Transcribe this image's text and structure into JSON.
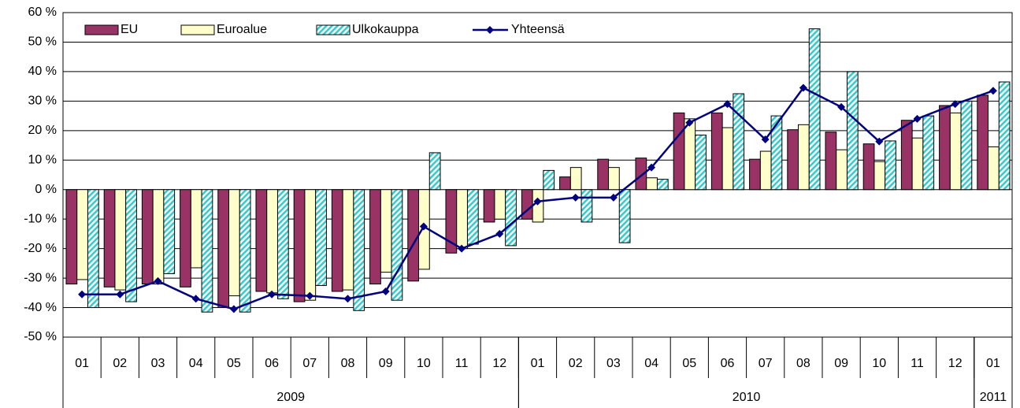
{
  "chart_data": {
    "type": "bar",
    "categories": [
      "01",
      "02",
      "03",
      "04",
      "05",
      "06",
      "07",
      "08",
      "09",
      "10",
      "11",
      "12",
      "01",
      "02",
      "03",
      "04",
      "05",
      "06",
      "07",
      "08",
      "09",
      "10",
      "11",
      "12",
      "01"
    ],
    "x_groups": [
      {
        "label": "2009",
        "count": 12
      },
      {
        "label": "2010",
        "count": 12
      },
      {
        "label": "2011",
        "count": 1
      }
    ],
    "series": [
      {
        "name": "EU",
        "color": "#993366",
        "values": [
          -32,
          -33,
          -32,
          -33,
          -40,
          -34.5,
          -38,
          -34.5,
          -32,
          -31,
          -21.5,
          -11,
          -10,
          4.3,
          10.3,
          10.7,
          26,
          26,
          10.3,
          20.3,
          19.5,
          15.5,
          23.5,
          28.5,
          32
        ]
      },
      {
        "name": "Euroalue",
        "color": "#ffffcc",
        "values": [
          -30.5,
          -34,
          -32,
          -26.5,
          -36,
          -35,
          -37.5,
          -34,
          -28,
          -27,
          -20,
          -10,
          -11,
          7.5,
          7.5,
          4,
          24,
          21,
          13,
          22,
          13.5,
          9.5,
          17.5,
          26,
          14.5
        ]
      },
      {
        "name": "Ulkokauppa",
        "color": "#33cccc",
        "hatch": true,
        "values": [
          -40,
          -38,
          -28.5,
          -41.5,
          -41.5,
          -37,
          -32.5,
          -41,
          -37.5,
          12.5,
          -18.5,
          -19,
          6.5,
          -11,
          -18,
          3.5,
          18.5,
          32.5,
          25,
          54.5,
          40,
          16.5,
          25,
          30,
          36.5
        ]
      },
      {
        "name": "Yhteensä",
        "color": "#000080",
        "type": "line",
        "values": [
          -35.5,
          -35.5,
          -31,
          -37,
          -40.5,
          -35.5,
          -36,
          -37,
          -34.5,
          -12.5,
          -20,
          -15,
          -4,
          -2.7,
          -2.7,
          7.5,
          22.7,
          29,
          17,
          34.5,
          28,
          16.3,
          24,
          29,
          33.5
        ]
      }
    ],
    "ylim": [
      -50,
      60
    ],
    "yticks": [
      {
        "value": -50,
        "label": "-50 %"
      },
      {
        "value": -40,
        "label": "-40 %"
      },
      {
        "value": -30,
        "label": "-30 %"
      },
      {
        "value": -20,
        "label": "-20 %"
      },
      {
        "value": -10,
        "label": "-10 %"
      },
      {
        "value": 0,
        "label": "0 %"
      },
      {
        "value": 10,
        "label": "10 %"
      },
      {
        "value": 20,
        "label": "20 %"
      },
      {
        "value": 30,
        "label": "30 %"
      },
      {
        "value": 40,
        "label": "40 %"
      },
      {
        "value": 50,
        "label": "50 %"
      },
      {
        "value": 60,
        "label": "60 %"
      }
    ],
    "grid": true,
    "legend": "top-left"
  }
}
